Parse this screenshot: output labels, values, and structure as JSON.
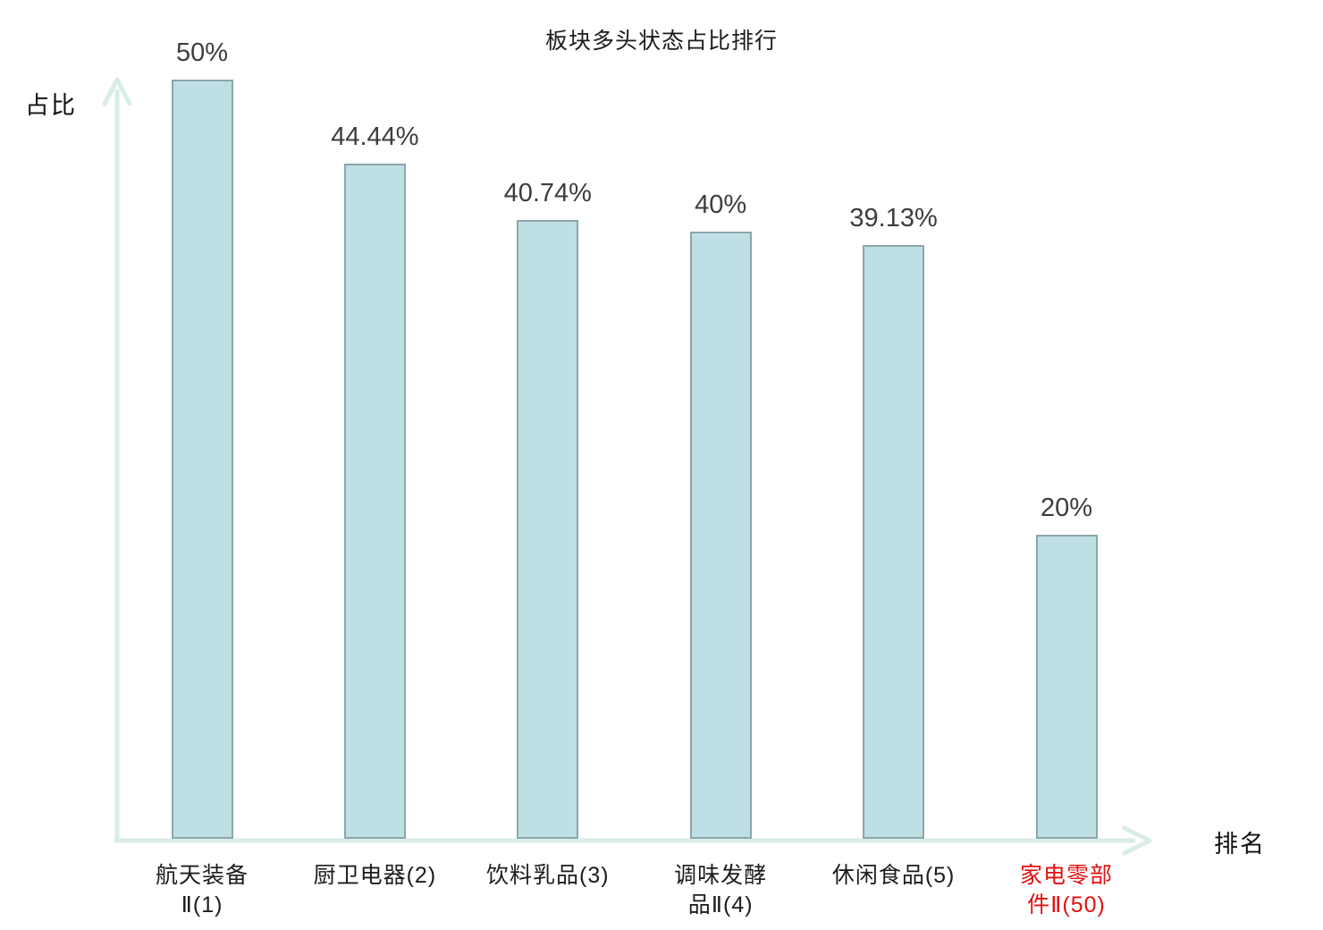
{
  "chart_data": {
    "type": "bar",
    "title": "板块多头状态占比排行",
    "xlabel": "排名",
    "ylabel": "占比",
    "categories": [
      "航天装备\nⅡ(1)",
      "厨卫电器(2)",
      "饮料乳品(3)",
      "调味发酵\n品Ⅱ(4)",
      "休闲食品(5)",
      "家电零部\n件Ⅱ(50)"
    ],
    "values": [
      50,
      44.44,
      40.74,
      40,
      39.13,
      20
    ],
    "value_labels": [
      "50%",
      "44.44%",
      "40.74%",
      "40%",
      "39.13%",
      "20%"
    ],
    "highlight_index": 5,
    "ylim": [
      0,
      52
    ],
    "grid": false,
    "legend": "none",
    "colors": {
      "bar_fill": "#bedfe3",
      "bar_border": "#8ba6ab",
      "axis": "#d9ece8",
      "label_text": "#1c1c1c",
      "value_text": "#3d3d3d",
      "highlight_text": "#e01111"
    }
  }
}
